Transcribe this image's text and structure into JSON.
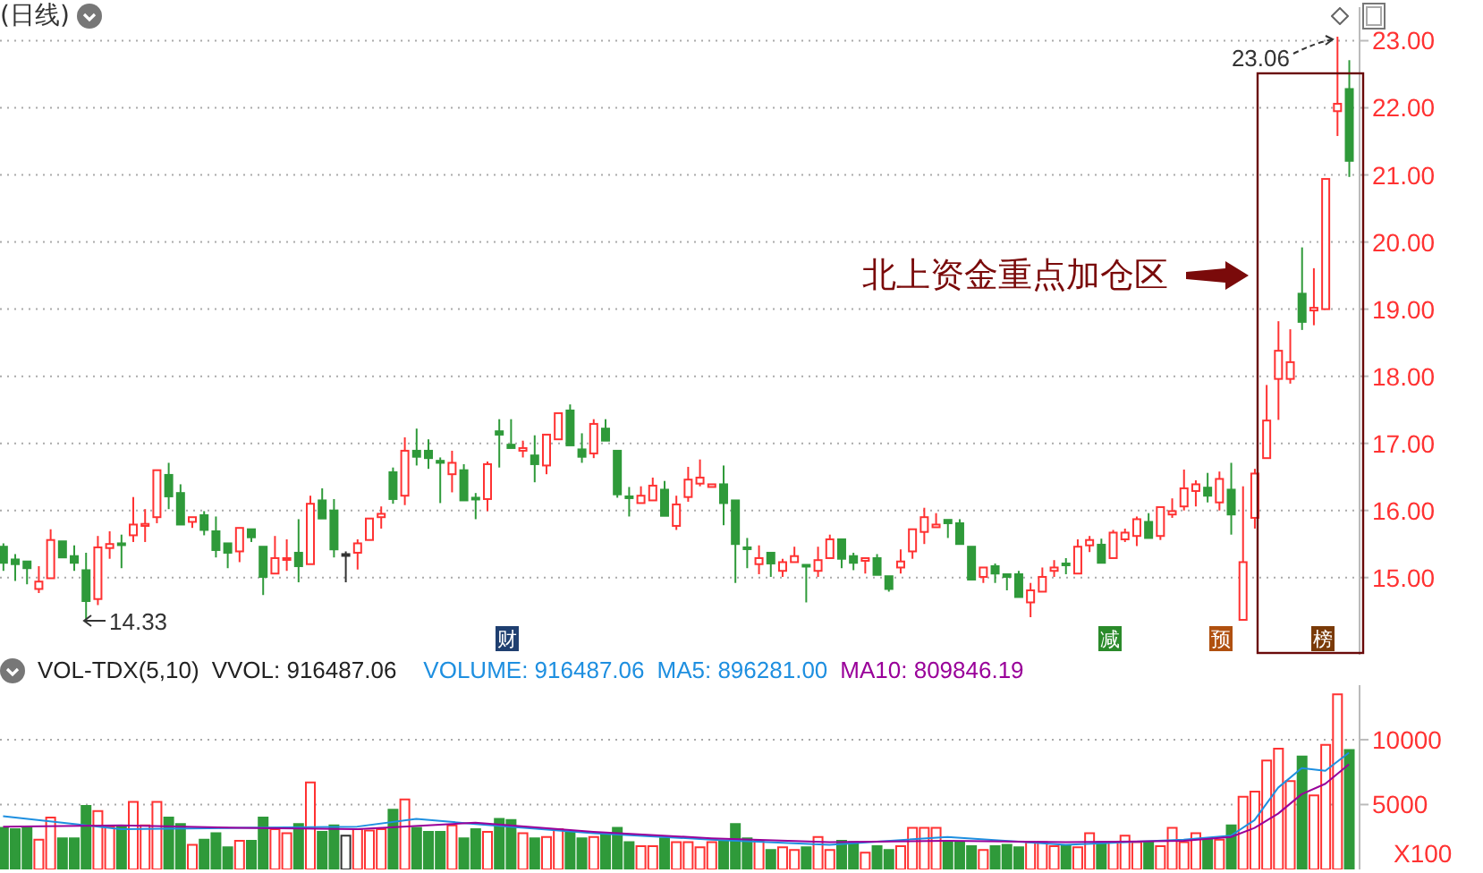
{
  "chart_data": [
    {
      "type": "candlestick",
      "title": "(日线)",
      "categories": [
        null,
        null,
        null,
        null,
        null,
        null,
        null,
        null,
        null,
        null,
        null,
        null,
        null,
        null,
        null,
        null,
        null,
        null,
        null,
        null,
        null,
        null,
        null,
        null,
        null,
        null,
        null,
        null,
        null,
        null,
        null,
        null,
        null,
        null,
        null,
        null,
        null,
        null,
        null,
        null,
        null,
        null,
        null,
        null,
        null,
        null,
        null,
        null,
        null,
        null,
        null,
        null,
        null,
        null,
        null,
        null,
        null,
        null,
        null,
        null,
        null,
        null,
        null,
        null,
        null,
        null,
        null,
        null,
        null,
        null,
        null,
        null,
        null,
        null,
        null,
        null,
        null,
        null,
        null,
        null,
        null,
        null,
        null,
        null,
        null,
        null,
        null,
        null,
        null,
        null,
        null,
        null,
        null,
        null,
        null,
        null,
        null,
        null,
        null,
        null,
        null,
        null,
        null,
        null,
        null,
        null,
        null,
        null,
        null,
        null,
        null,
        null,
        null,
        null,
        null
      ],
      "ohlc": [
        [
          15.46,
          15.51,
          15.1,
          15.22
        ],
        [
          15.27,
          15.35,
          14.95,
          15.2
        ],
        [
          15.24,
          15.26,
          14.9,
          15.14
        ],
        [
          14.83,
          15.17,
          14.77,
          14.94
        ],
        [
          14.99,
          15.72,
          14.99,
          15.56
        ],
        [
          15.54,
          15.56,
          15.28,
          15.3
        ],
        [
          15.32,
          15.48,
          15.1,
          15.22
        ],
        [
          15.11,
          15.37,
          14.33,
          14.65
        ],
        [
          14.68,
          15.62,
          14.59,
          15.45
        ],
        [
          15.44,
          15.69,
          15.28,
          15.5
        ],
        [
          15.51,
          15.64,
          15.14,
          15.5
        ],
        [
          15.63,
          16.2,
          15.53,
          15.79
        ],
        [
          15.77,
          16.02,
          15.53,
          15.8
        ],
        [
          15.9,
          16.62,
          15.81,
          16.6
        ],
        [
          16.53,
          16.71,
          16.02,
          16.21
        ],
        [
          16.26,
          16.39,
          15.78,
          15.79
        ],
        [
          15.83,
          15.93,
          15.74,
          15.9
        ],
        [
          15.93,
          15.99,
          15.63,
          15.71
        ],
        [
          15.69,
          15.91,
          15.3,
          15.41
        ],
        [
          15.51,
          15.52,
          15.14,
          15.37
        ],
        [
          15.39,
          15.75,
          15.23,
          15.74
        ],
        [
          15.72,
          15.75,
          15.53,
          15.6
        ],
        [
          15.46,
          15.47,
          14.74,
          15.01
        ],
        [
          15.06,
          15.62,
          15.05,
          15.29
        ],
        [
          15.27,
          15.57,
          15.1,
          15.29
        ],
        [
          15.37,
          15.87,
          14.93,
          15.17
        ],
        [
          15.2,
          16.22,
          15.19,
          16.1
        ],
        [
          16.15,
          16.33,
          15.87,
          15.88
        ],
        [
          16.0,
          16.17,
          15.3,
          15.42
        ],
        [
          15.35,
          15.39,
          14.93,
          15.35
        ],
        [
          15.37,
          15.57,
          15.12,
          15.51
        ],
        [
          15.56,
          15.91,
          15.53,
          15.88
        ],
        [
          15.9,
          16.06,
          15.73,
          15.95
        ],
        [
          16.57,
          16.64,
          16.1,
          16.17
        ],
        [
          16.22,
          17.09,
          16.08,
          16.89
        ],
        [
          16.89,
          17.22,
          16.67,
          16.8
        ],
        [
          16.89,
          17.06,
          16.62,
          16.78
        ],
        [
          16.74,
          16.79,
          16.11,
          16.71
        ],
        [
          16.54,
          16.89,
          16.27,
          16.71
        ],
        [
          16.6,
          16.69,
          16.15,
          16.15
        ],
        [
          16.19,
          16.26,
          15.87,
          16.17
        ],
        [
          16.17,
          16.73,
          15.99,
          16.69
        ],
        [
          17.18,
          17.36,
          16.64,
          17.13
        ],
        [
          16.98,
          17.36,
          16.91,
          16.93
        ],
        [
          16.89,
          17.04,
          16.79,
          16.93
        ],
        [
          16.82,
          17.12,
          16.42,
          16.69
        ],
        [
          16.67,
          17.13,
          16.54,
          17.13
        ],
        [
          17.06,
          17.45,
          17.04,
          17.45
        ],
        [
          17.49,
          17.58,
          16.97,
          16.97
        ],
        [
          16.91,
          17.15,
          16.71,
          16.8
        ],
        [
          16.85,
          17.36,
          16.78,
          17.29
        ],
        [
          17.22,
          17.36,
          17.04,
          17.04
        ],
        [
          16.89,
          16.89,
          16.19,
          16.24
        ],
        [
          16.21,
          16.35,
          15.91,
          16.2
        ],
        [
          16.11,
          16.36,
          16.09,
          16.22
        ],
        [
          16.15,
          16.49,
          16.15,
          16.37
        ],
        [
          16.31,
          16.44,
          15.92,
          15.92
        ],
        [
          15.77,
          16.22,
          15.71,
          16.09
        ],
        [
          16.2,
          16.65,
          16.13,
          16.46
        ],
        [
          16.4,
          16.76,
          16.36,
          16.49
        ],
        [
          16.35,
          16.42,
          16.33,
          16.39
        ],
        [
          16.39,
          16.67,
          15.78,
          16.11
        ],
        [
          16.15,
          16.15,
          14.92,
          15.5
        ],
        [
          15.45,
          15.59,
          15.14,
          15.43
        ],
        [
          15.2,
          15.48,
          15.05,
          15.29
        ],
        [
          15.37,
          15.37,
          15.01,
          15.21
        ],
        [
          15.1,
          15.28,
          15.01,
          15.23
        ],
        [
          15.23,
          15.46,
          15.21,
          15.32
        ],
        [
          15.19,
          15.21,
          14.63,
          15.17
        ],
        [
          15.1,
          15.46,
          15.01,
          15.26
        ],
        [
          15.29,
          15.64,
          15.28,
          15.57
        ],
        [
          15.57,
          15.6,
          15.14,
          15.28
        ],
        [
          15.32,
          15.37,
          15.11,
          15.22
        ],
        [
          15.25,
          15.29,
          15.06,
          15.29
        ],
        [
          15.29,
          15.35,
          15.04,
          15.04
        ],
        [
          15.02,
          15.04,
          14.79,
          14.83
        ],
        [
          15.15,
          15.42,
          15.06,
          15.24
        ],
        [
          15.39,
          15.75,
          15.28,
          15.72
        ],
        [
          15.68,
          16.04,
          15.5,
          15.9
        ],
        [
          15.75,
          15.96,
          15.73,
          15.79
        ],
        [
          15.86,
          15.86,
          15.59,
          15.81
        ],
        [
          15.81,
          15.87,
          15.5,
          15.5
        ],
        [
          15.46,
          15.46,
          14.95,
          14.97
        ],
        [
          15.01,
          15.15,
          14.92,
          15.15
        ],
        [
          15.17,
          15.21,
          14.92,
          15.06
        ],
        [
          15.05,
          15.05,
          14.81,
          15.01
        ],
        [
          15.05,
          15.1,
          14.68,
          14.71
        ],
        [
          14.63,
          14.92,
          14.41,
          14.81
        ],
        [
          14.79,
          15.15,
          14.79,
          15.01
        ],
        [
          15.1,
          15.26,
          15.01,
          15.15
        ],
        [
          15.21,
          15.29,
          15.05,
          15.2
        ],
        [
          15.06,
          15.57,
          15.06,
          15.46
        ],
        [
          15.48,
          15.62,
          15.38,
          15.56
        ],
        [
          15.49,
          15.58,
          15.22,
          15.22
        ],
        [
          15.29,
          15.71,
          15.29,
          15.67
        ],
        [
          15.57,
          15.73,
          15.53,
          15.67
        ],
        [
          15.62,
          15.91,
          15.47,
          15.87
        ],
        [
          15.83,
          15.96,
          15.59,
          15.59
        ],
        [
          15.62,
          16.05,
          15.56,
          16.05
        ],
        [
          15.94,
          16.18,
          15.89,
          15.99
        ],
        [
          16.06,
          16.61,
          16.0,
          16.33
        ],
        [
          16.29,
          16.45,
          16.06,
          16.39
        ],
        [
          16.34,
          16.56,
          16.12,
          16.22
        ],
        [
          16.12,
          16.58,
          16.0,
          16.47
        ],
        [
          16.31,
          16.71,
          15.64,
          15.94
        ],
        [
          14.37,
          16.36,
          14.37,
          15.23
        ],
        [
          15.89,
          16.62,
          15.73,
          16.55
        ],
        [
          16.78,
          17.87,
          16.78,
          17.34
        ],
        [
          17.96,
          18.82,
          17.35,
          18.38
        ],
        [
          17.96,
          18.7,
          17.89,
          18.21
        ],
        [
          19.23,
          19.92,
          18.69,
          18.81
        ],
        [
          18.98,
          19.61,
          18.76,
          19.02
        ],
        [
          19.0,
          20.94,
          19.0,
          20.94
        ],
        [
          21.95,
          23.06,
          21.58,
          22.06
        ],
        [
          22.28,
          22.71,
          20.97,
          21.21
        ]
      ],
      "ylim": [
        13.85,
        23.5
      ],
      "yticks": [
        {
          "value": 15,
          "label": "15.00"
        },
        {
          "value": 16,
          "label": "16.00"
        },
        {
          "value": 17,
          "label": "17.00"
        },
        {
          "value": 18,
          "label": "18.00"
        },
        {
          "value": 19,
          "label": "19.00"
        },
        {
          "value": 20,
          "label": "20.00"
        },
        {
          "value": 21,
          "label": "21.00"
        },
        {
          "value": 22,
          "label": "22.00"
        },
        {
          "value": 23,
          "label": "23.00"
        }
      ],
      "grid": "y",
      "tick_labels": "y",
      "annotations": [
        "北上资金重点加仓区",
        "14.33",
        "23.06",
        "财",
        "减",
        "预",
        "榜"
      ]
    },
    {
      "type": "bar",
      "title": "VOL-TDX(5,10)",
      "ylabel": "X100",
      "categories": [
        null,
        null,
        null,
        null,
        null,
        null,
        null,
        null,
        null,
        null,
        null,
        null,
        null,
        null,
        null,
        null,
        null,
        null,
        null,
        null,
        null,
        null,
        null,
        null,
        null,
        null,
        null,
        null,
        null,
        null,
        null,
        null,
        null,
        null,
        null,
        null,
        null,
        null,
        null,
        null,
        null,
        null,
        null,
        null,
        null,
        null,
        null,
        null,
        null,
        null,
        null,
        null,
        null,
        null,
        null,
        null,
        null,
        null,
        null,
        null,
        null,
        null,
        null,
        null,
        null,
        null,
        null,
        null,
        null,
        null,
        null,
        null,
        null,
        null,
        null,
        null,
        null,
        null,
        null,
        null,
        null,
        null,
        null,
        null,
        null,
        null,
        null,
        null,
        null,
        null,
        null,
        null,
        null,
        null,
        null,
        null,
        null,
        null,
        null,
        null,
        null,
        null,
        null,
        null,
        null,
        null,
        null,
        null,
        null,
        null,
        null,
        null,
        null,
        null,
        null
      ],
      "series": [
        {
          "values": [
            3200,
            3100,
            3200,
            2300,
            4000,
            2400,
            2400,
            4900,
            4500,
            3300,
            3300,
            5200,
            3400,
            5200,
            4000,
            3500,
            1900,
            2300,
            2800,
            1700,
            2200,
            2200,
            4000,
            3100,
            2800,
            3500,
            6700,
            2900,
            3400,
            2600,
            3100,
            3000,
            3100,
            4600,
            5400,
            3200,
            2900,
            2900,
            3400,
            2400,
            3100,
            2900,
            3900,
            3800,
            2800,
            2400,
            2500,
            3100,
            2900,
            2400,
            2500,
            2700,
            3200,
            2100,
            1800,
            1800,
            2400,
            2100,
            2100,
            1700,
            2100,
            2200,
            3500,
            2400,
            2200,
            1500,
            1700,
            1500,
            1700,
            2500,
            1500,
            2200,
            2100,
            1300,
            1800,
            1500,
            1800,
            3200,
            3200,
            3200,
            2100,
            2100,
            1800,
            1500,
            1800,
            1900,
            1700,
            2100,
            2100,
            1800,
            1800,
            1700,
            2800,
            2100,
            2100,
            2600,
            2100,
            2100,
            1800,
            3200,
            2100,
            2800,
            2400,
            2300,
            3400,
            5600,
            6000,
            8400,
            9300,
            6800,
            8700,
            5700,
            9600,
            13500,
            9200
          ],
          "colors": [
            "#2f9a3a",
            "#2f9a3a",
            "#2f9a3a",
            "#ff3232",
            "#ff3232",
            "#2f9a3a",
            "#2f9a3a",
            "#2f9a3a",
            "#ff3232",
            "#ff3232",
            "#2f9a3a",
            "#ff3232",
            "#ff3232",
            "#ff3232",
            "#2f9a3a",
            "#2f9a3a",
            "#ff3232",
            "#2f9a3a",
            "#2f9a3a",
            "#2f9a3a",
            "#ff3232",
            "#2f9a3a",
            "#2f9a3a",
            "#ff3232",
            "#ff3232",
            "#2f9a3a",
            "#ff3232",
            "#2f9a3a",
            "#2f9a3a",
            "#333333",
            "#ff3232",
            "#ff3232",
            "#ff3232",
            "#2f9a3a",
            "#ff3232",
            "#2f9a3a",
            "#2f9a3a",
            "#2f9a3a",
            "#ff3232",
            "#2f9a3a",
            "#2f9a3a",
            "#ff3232",
            "#2f9a3a",
            "#2f9a3a",
            "#ff3232",
            "#2f9a3a",
            "#ff3232",
            "#ff3232",
            "#2f9a3a",
            "#2f9a3a",
            "#ff3232",
            "#2f9a3a",
            "#2f9a3a",
            "#2f9a3a",
            "#ff3232",
            "#ff3232",
            "#2f9a3a",
            "#ff3232",
            "#ff3232",
            "#ff3232",
            "#ff3232",
            "#2f9a3a",
            "#2f9a3a",
            "#2f9a3a",
            "#ff3232",
            "#2f9a3a",
            "#ff3232",
            "#ff3232",
            "#2f9a3a",
            "#ff3232",
            "#ff3232",
            "#2f9a3a",
            "#2f9a3a",
            "#ff3232",
            "#2f9a3a",
            "#2f9a3a",
            "#ff3232",
            "#ff3232",
            "#ff3232",
            "#ff3232",
            "#2f9a3a",
            "#2f9a3a",
            "#2f9a3a",
            "#ff3232",
            "#2f9a3a",
            "#2f9a3a",
            "#2f9a3a",
            "#ff3232",
            "#ff3232",
            "#ff3232",
            "#2f9a3a",
            "#ff3232",
            "#ff3232",
            "#2f9a3a",
            "#ff3232",
            "#ff3232",
            "#ff3232",
            "#2f9a3a",
            "#ff3232",
            "#ff3232",
            "#ff3232",
            "#ff3232",
            "#2f9a3a",
            "#ff3232",
            "#2f9a3a",
            "#ff3232",
            "#ff3232",
            "#ff3232",
            "#ff3232",
            "#ff3232",
            "#2f9a3a",
            "#ff3232",
            "#ff3232",
            "#ff3232",
            "#2f9a3a"
          ]
        },
        {
          "name": "MA5: 896281.00",
          "type": "line",
          "color": "#1e8fe0",
          "values": [
            4100,
            null,
            null,
            null,
            null,
            null,
            null,
            null,
            null,
            null,
            3100,
            null,
            null,
            null,
            null,
            null,
            null,
            null,
            null,
            null,
            3200,
            null,
            null,
            null,
            null,
            null,
            null,
            null,
            null,
            null,
            3300,
            null,
            null,
            null,
            null,
            3900,
            null,
            null,
            null,
            null,
            3500,
            null,
            null,
            null,
            null,
            null,
            null,
            null,
            null,
            null,
            2800,
            null,
            null,
            null,
            null,
            null,
            null,
            null,
            null,
            null,
            2300,
            null,
            null,
            null,
            null,
            null,
            null,
            null,
            null,
            null,
            1900,
            null,
            null,
            null,
            null,
            null,
            null,
            null,
            null,
            null,
            2500,
            null,
            null,
            null,
            null,
            null,
            null,
            null,
            null,
            null,
            1900,
            null,
            null,
            null,
            null,
            null,
            null,
            null,
            null,
            null,
            2300,
            null,
            null,
            null,
            2600,
            null,
            3800,
            null,
            6300,
            null,
            7800,
            null,
            7600,
            null,
            9000
          ]
        },
        {
          "name": "MA10: 809846.19",
          "type": "line",
          "color": "#990099",
          "values": [
            3300,
            null,
            null,
            null,
            null,
            null,
            null,
            null,
            null,
            null,
            3400,
            null,
            null,
            null,
            null,
            null,
            null,
            null,
            null,
            null,
            3200,
            null,
            null,
            null,
            null,
            null,
            null,
            null,
            null,
            null,
            3100,
            null,
            null,
            null,
            null,
            null,
            null,
            null,
            null,
            null,
            3600,
            null,
            null,
            null,
            null,
            null,
            null,
            null,
            null,
            null,
            2900,
            null,
            null,
            null,
            null,
            null,
            null,
            null,
            null,
            null,
            2400,
            null,
            null,
            null,
            null,
            null,
            null,
            null,
            null,
            null,
            2100,
            null,
            null,
            null,
            null,
            null,
            null,
            null,
            null,
            null,
            2200,
            null,
            null,
            null,
            null,
            null,
            null,
            null,
            null,
            null,
            2100,
            null,
            null,
            null,
            null,
            null,
            null,
            null,
            null,
            null,
            2200,
            null,
            null,
            null,
            2500,
            null,
            3200,
            null,
            4300,
            null,
            5800,
            null,
            6600,
            null,
            8100
          ]
        }
      ],
      "ylim": [
        0,
        14200
      ],
      "yticks": [
        5000,
        10000
      ],
      "grid": "y",
      "tick_labels": "y",
      "legend": "top",
      "annotations": [
        "VVOL: 916487.06",
        "VOLUME: 916487.06"
      ]
    }
  ]
}
